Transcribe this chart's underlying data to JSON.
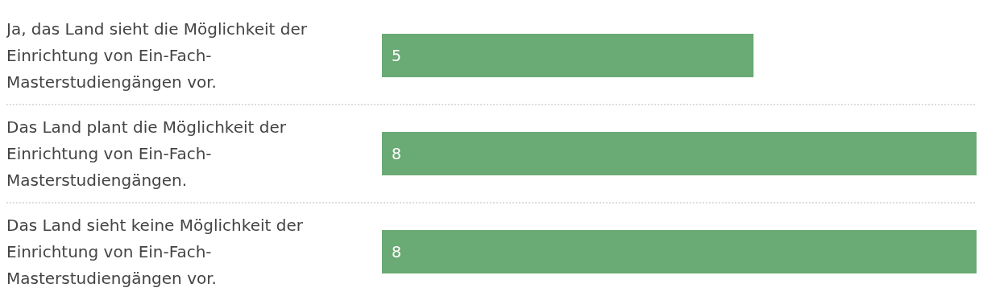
{
  "chart_data": {
    "type": "bar",
    "orientation": "horizontal",
    "categories": [
      "Ja, das Land sieht die Möglichkeit der Einrichtung von Ein-Fach-Masterstudiengängen vor.",
      "Das Land plant die Möglichkeit der Einrichtung von Ein-Fach-Masterstudiengängen.",
      "Das Land sieht keine Möglichkeit der Einrichtung von Ein-Fach-Masterstudiengängen vor."
    ],
    "values": [
      5,
      8,
      8
    ],
    "color": "#6aaa74",
    "data_labels": true,
    "legend": false
  }
}
